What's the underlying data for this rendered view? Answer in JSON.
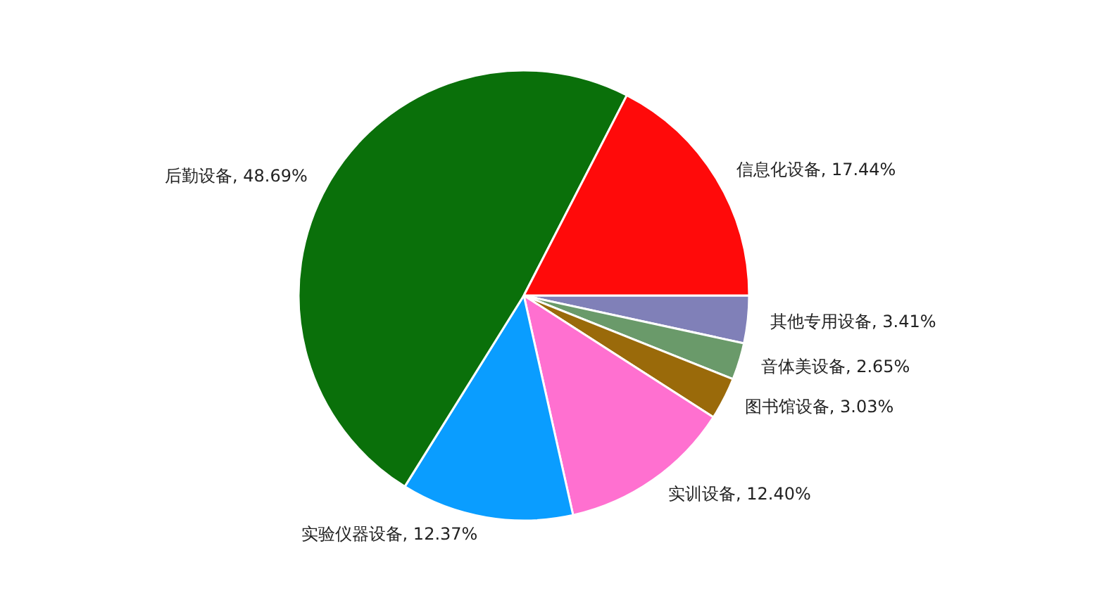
{
  "chart_data": {
    "type": "pie",
    "categories": [
      "其他专用设备",
      "音体美设备",
      "图书馆设备",
      "实训设备",
      "实验仪器设备",
      "后勤设备",
      "信息化设备"
    ],
    "values": [
      3.41,
      2.65,
      3.03,
      12.4,
      12.37,
      48.69,
      17.44
    ],
    "value_labels": [
      "3.41%",
      "2.65%",
      "3.03%",
      "12.40%",
      "12.37%",
      "48.69%",
      "17.44%"
    ],
    "colors": [
      "#8080b8",
      "#6a9a6a",
      "#9a6a0a",
      "#ff70d0",
      "#0a9dff",
      "#0a700a",
      "#ff0a0a"
    ]
  }
}
